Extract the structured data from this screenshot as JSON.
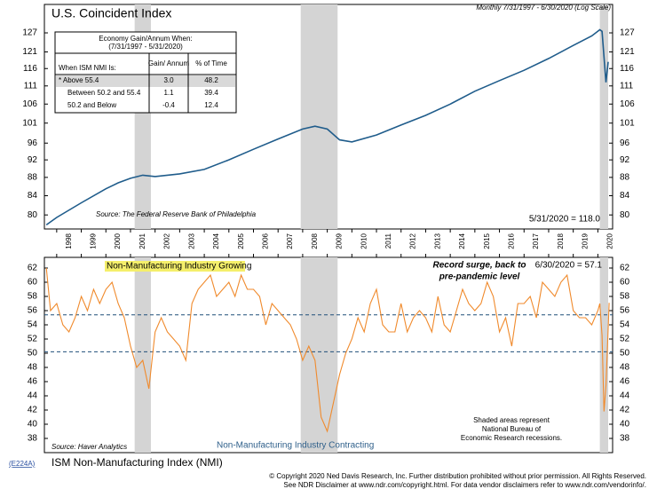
{
  "chart_data": [
    {
      "type": "line",
      "title": "U.S. Coincident Index",
      "subtitle": "Monthly 7/31/1997 - 6/30/2020 (Log Scale)",
      "log_scale": true,
      "color": "#1f5c8b",
      "x": [
        1997.58,
        1998,
        1999,
        2000,
        2000.5,
        2001,
        2001.5,
        2002,
        2003,
        2004,
        2005,
        2006,
        2007,
        2008,
        2008.5,
        2009,
        2009.5,
        2010,
        2011,
        2012,
        2013,
        2014,
        2015,
        2016,
        2017,
        2018,
        2019,
        2019.75,
        2020.08,
        2020.17,
        2020.33,
        2020.42
      ],
      "values": [
        78,
        79.5,
        82.5,
        85.5,
        86.8,
        87.8,
        88.5,
        88.2,
        88.8,
        89.8,
        92,
        94.5,
        97,
        99.5,
        100.2,
        99.5,
        96.8,
        96.3,
        98,
        100.5,
        103,
        106,
        109.5,
        112.5,
        115.5,
        119,
        123,
        126,
        128,
        127.5,
        112,
        118.0
      ],
      "xlim": [
        1997.5,
        2020.6
      ],
      "ylim": [
        77.2,
        136.5
      ],
      "xticks": [
        1998,
        1999,
        2000,
        2001,
        2002,
        2003,
        2004,
        2005,
        2006,
        2007,
        2008,
        2009,
        2010,
        2011,
        2012,
        2013,
        2014,
        2015,
        2016,
        2017,
        2018,
        2019,
        2020
      ],
      "yticks": [
        80,
        84,
        88,
        92,
        96,
        101,
        106,
        111,
        116,
        121,
        127
      ],
      "recessions": [
        [
          2001.17,
          2001.83
        ],
        [
          2007.92,
          2009.42
        ],
        [
          2020.08,
          2020.42
        ]
      ],
      "annotations": [
        "Source: The Federal Reserve Bank of Philadelphia",
        "5/31/2020 = 118.0"
      ],
      "table": {
        "title": "Economy Gain/Annum When:",
        "subtitle": "(7/31/1997 - 5/31/2020)",
        "header": [
          "When ISM NMI Is:",
          "Gain/ Annum",
          "% of Time"
        ],
        "rows": [
          [
            "* Above 55.4",
            "3.0",
            "48.2"
          ],
          [
            "Between 50.2 and 55.4",
            "1.1",
            "39.4"
          ],
          [
            "50.2 and Below",
            "-0.4",
            "12.4"
          ]
        ]
      }
    },
    {
      "type": "line",
      "title": "ISM Non-Manufacturing Index (NMI)",
      "color": "#f08a2c",
      "x": [
        1997.58,
        1997.75,
        1998,
        1998.25,
        1998.5,
        1998.75,
        1999,
        1999.25,
        1999.5,
        1999.75,
        2000,
        2000.25,
        2000.5,
        2000.75,
        2001,
        2001.25,
        2001.5,
        2001.75,
        2002,
        2002.25,
        2002.5,
        2002.75,
        2003,
        2003.25,
        2003.5,
        2003.75,
        2004,
        2004.25,
        2004.5,
        2004.75,
        2005,
        2005.25,
        2005.5,
        2005.75,
        2006,
        2006.25,
        2006.5,
        2006.75,
        2007,
        2007.25,
        2007.5,
        2007.75,
        2008,
        2008.25,
        2008.5,
        2008.75,
        2009,
        2009.25,
        2009.5,
        2009.75,
        2010,
        2010.25,
        2010.5,
        2010.75,
        2011,
        2011.25,
        2011.5,
        2011.75,
        2012,
        2012.25,
        2012.5,
        2012.75,
        2013,
        2013.25,
        2013.5,
        2013.75,
        2014,
        2014.25,
        2014.5,
        2014.75,
        2015,
        2015.25,
        2015.5,
        2015.75,
        2016,
        2016.25,
        2016.5,
        2016.75,
        2017,
        2017.25,
        2017.5,
        2017.75,
        2018,
        2018.25,
        2018.5,
        2018.75,
        2019,
        2019.25,
        2019.5,
        2019.75,
        2020,
        2020.08,
        2020.17,
        2020.25,
        2020.33,
        2020.46
      ],
      "values": [
        62,
        56,
        57,
        54,
        53,
        55,
        58,
        56,
        59,
        57,
        59,
        60,
        57,
        55,
        51,
        48,
        49,
        45,
        53,
        55,
        53,
        52,
        51,
        49,
        57,
        59,
        60,
        61,
        58,
        59,
        60,
        58,
        61,
        59,
        59,
        58,
        54,
        57,
        56,
        55,
        54,
        52,
        49,
        51,
        49,
        41,
        39,
        43,
        47,
        50,
        52,
        55,
        53,
        57,
        59,
        54,
        53,
        53,
        57,
        53,
        55,
        56,
        55,
        53,
        58,
        54,
        53,
        56,
        59,
        57,
        56,
        57,
        60,
        58,
        53,
        55,
        51,
        57,
        57,
        58,
        55,
        60,
        59,
        58,
        60,
        61,
        56,
        55,
        55,
        54,
        56,
        57,
        52.5,
        41.8,
        45.4,
        57.1
      ],
      "xlim": [
        1997.5,
        2020.6
      ],
      "ylim": [
        36,
        63.5
      ],
      "yticks": [
        38,
        40,
        42,
        44,
        46,
        48,
        50,
        52,
        54,
        56,
        58,
        60,
        62
      ],
      "reference_lines": [
        55.4,
        50.2
      ],
      "recessions": [
        [
          2001.17,
          2001.83
        ],
        [
          2007.92,
          2009.42
        ],
        [
          2020.08,
          2020.42
        ]
      ],
      "annotations": {
        "growing": "Non-Manufacturing Industry Growing",
        "contracting": "Non-Manufacturing Industry Contracting",
        "surge": [
          "Record surge, back to",
          "pre-pandemic level"
        ],
        "last": "6/30/2020 = 57.1",
        "shaded": [
          "Shaded areas represent",
          "National Bureau of",
          "Economic Research recessions."
        ],
        "source": "Source: Haver Analytics"
      }
    }
  ],
  "footer": {
    "code": "(E224A)",
    "copyright": "© Copyright 2020 Ned Davis Research, Inc.  Further distribution prohibited without prior permission.  All Rights Reserved.",
    "disclaimer": "See NDR Disclaimer at www.ndr.com/copyright.html.  For data vendor disclaimers refer to www.ndr.com/vendorinfo/."
  }
}
